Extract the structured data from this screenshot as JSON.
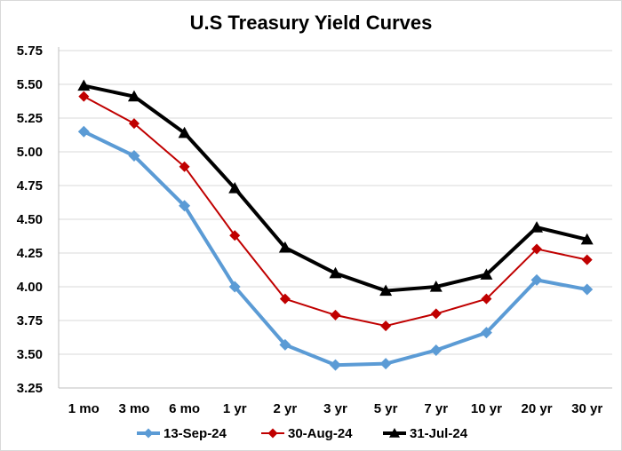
{
  "chart_data": {
    "type": "line",
    "title": "U.S Treasury Yield Curves",
    "categories": [
      "1 mo",
      "3 mo",
      "6 mo",
      "1 yr",
      "2 yr",
      "3 yr",
      "5 yr",
      "7 yr",
      "10 yr",
      "20 yr",
      "30 yr"
    ],
    "ylim": [
      3.25,
      5.75
    ],
    "yticks": [
      "3.25",
      "3.50",
      "3.75",
      "4.00",
      "4.25",
      "4.50",
      "4.75",
      "5.00",
      "5.25",
      "5.50",
      "5.75"
    ],
    "grid": "horizontal",
    "legend_position": "bottom",
    "series": [
      {
        "name": "13-Sep-24",
        "color": "#5b9bd5",
        "marker": "diamond",
        "values": [
          5.15,
          4.97,
          4.6,
          4.0,
          3.57,
          3.42,
          3.43,
          3.53,
          3.66,
          4.05,
          3.98
        ]
      },
      {
        "name": "30-Aug-24",
        "color": "#c00000",
        "marker": "diamond",
        "values": [
          5.41,
          5.21,
          4.89,
          4.38,
          3.91,
          3.79,
          3.71,
          3.8,
          3.91,
          4.28,
          4.2
        ]
      },
      {
        "name": "31-Jul-24",
        "color": "#000000",
        "marker": "triangle",
        "values": [
          5.49,
          5.41,
          5.14,
          4.73,
          4.29,
          4.1,
          3.97,
          4.0,
          4.09,
          4.44,
          4.35
        ]
      }
    ]
  }
}
